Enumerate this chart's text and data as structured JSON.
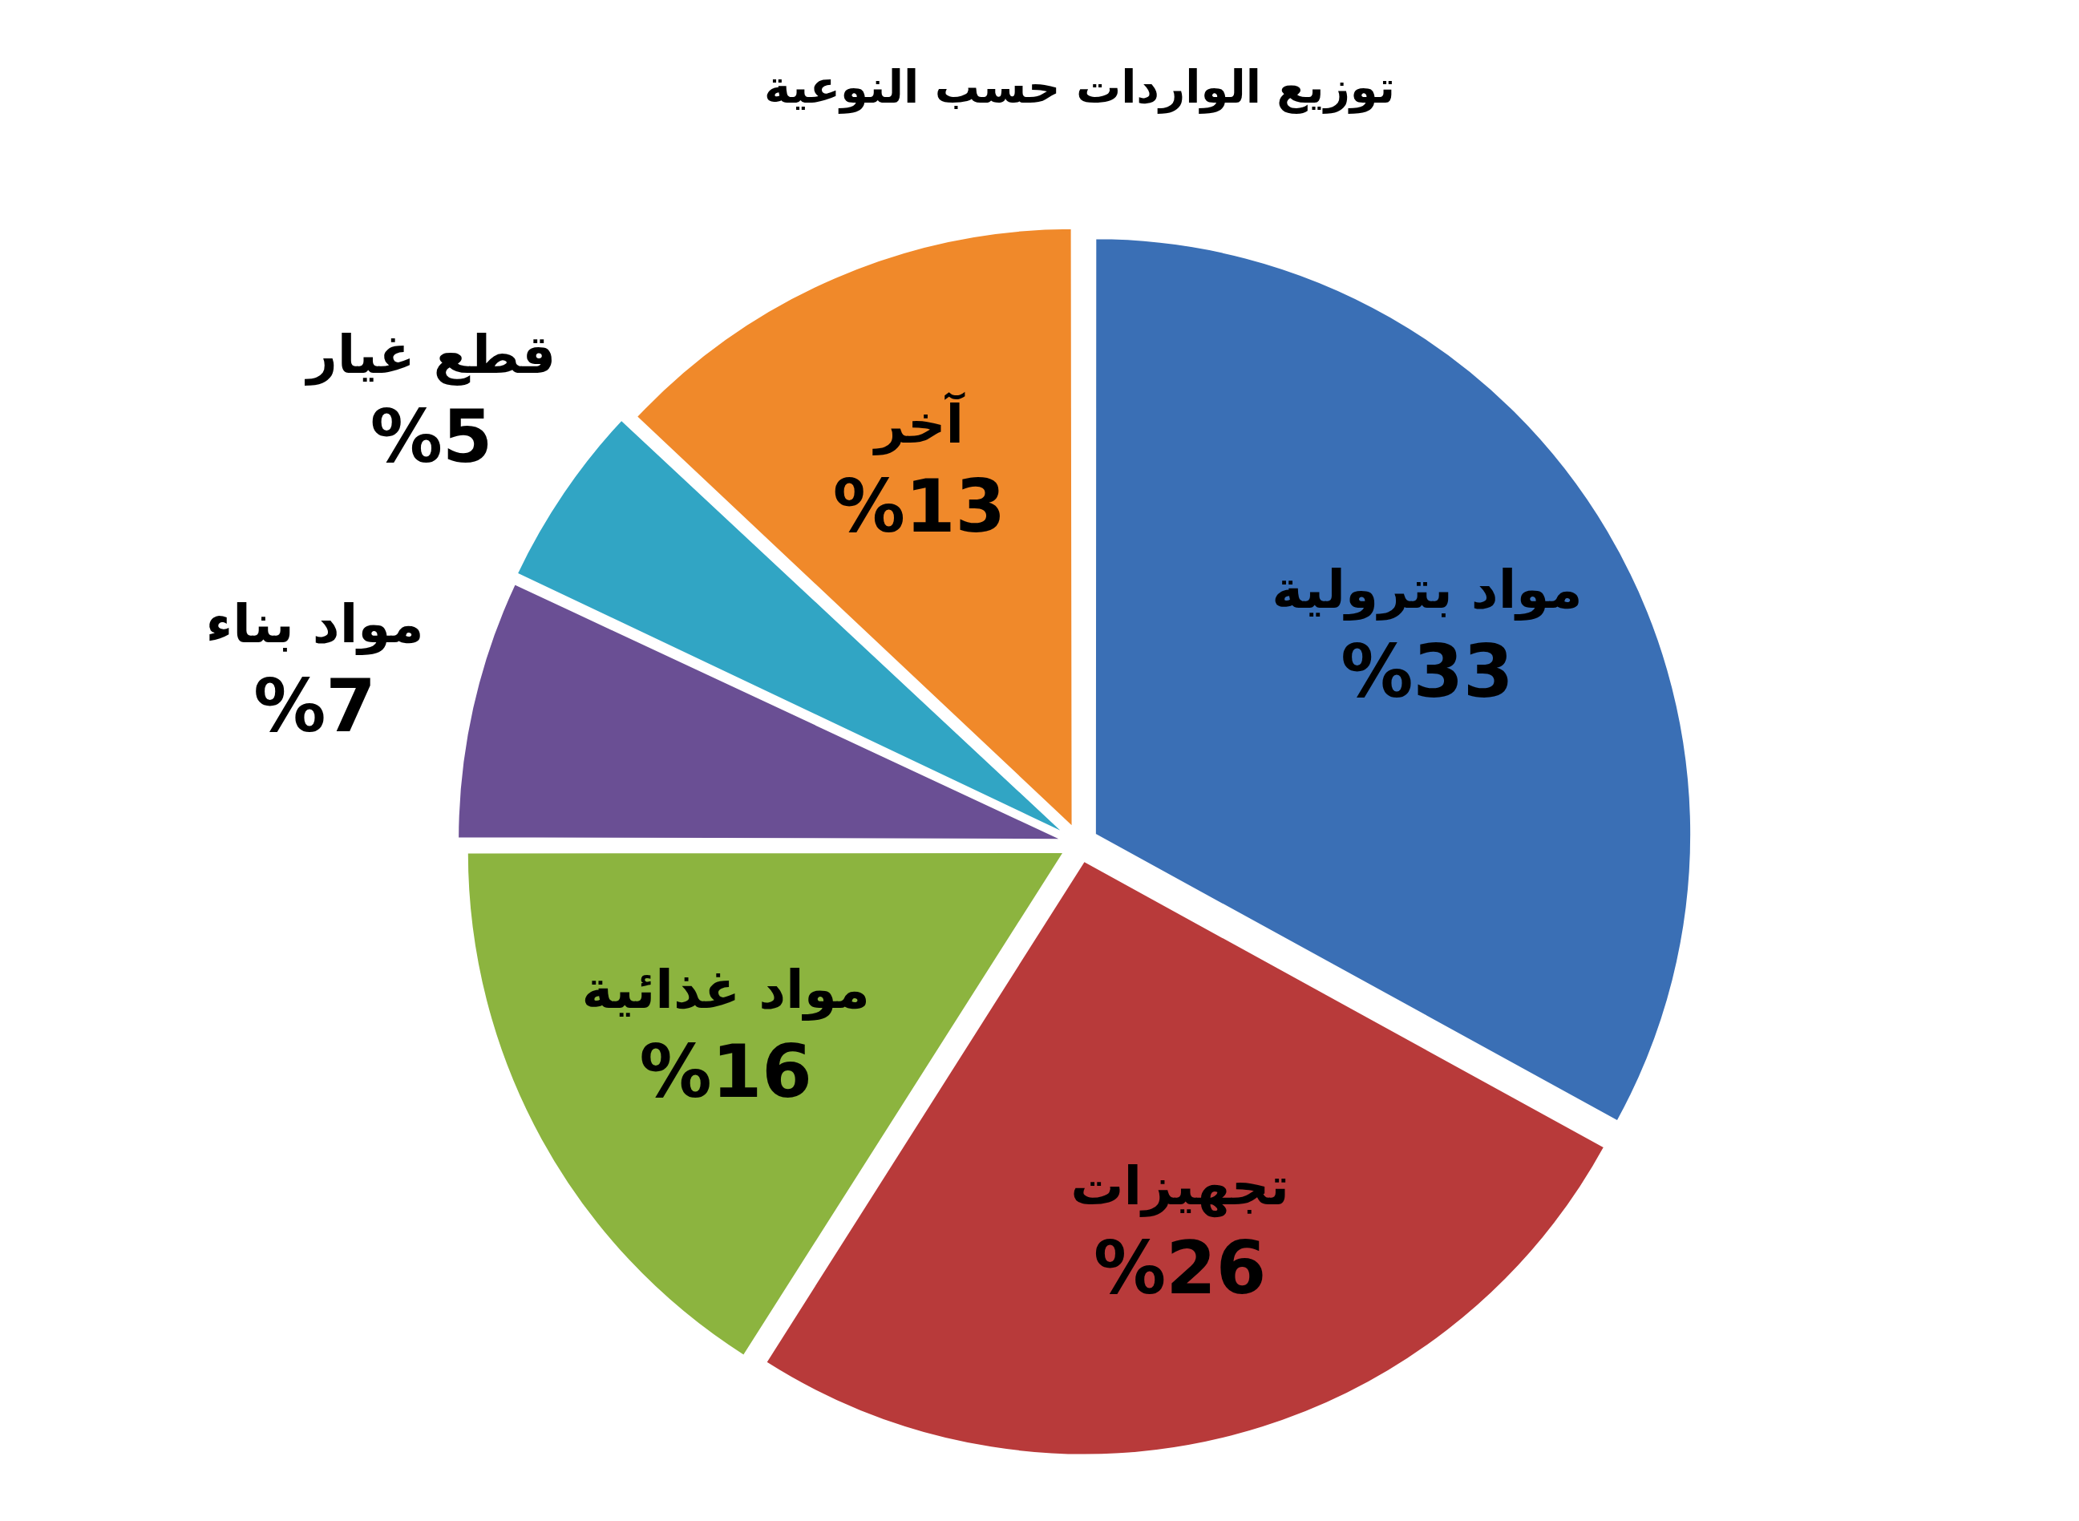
{
  "chart_data": {
    "type": "pie",
    "title": "توزيع الواردات حسب النوعية",
    "categories": [
      "مواد بترولية",
      "تجهيزات",
      "مواد غذائية",
      "مواد بناء",
      "قطع غيار",
      "آخر"
    ],
    "values": [
      33,
      26,
      16,
      7,
      5,
      13
    ],
    "colors": [
      "#3a6fb5",
      "#b83a3a",
      "#8cb43f",
      "#6a4f94",
      "#31a5c4",
      "#f0892a"
    ],
    "value_labels": [
      "%33",
      "%26",
      "%16",
      "%7",
      "%5",
      "%13"
    ],
    "legend": false
  }
}
